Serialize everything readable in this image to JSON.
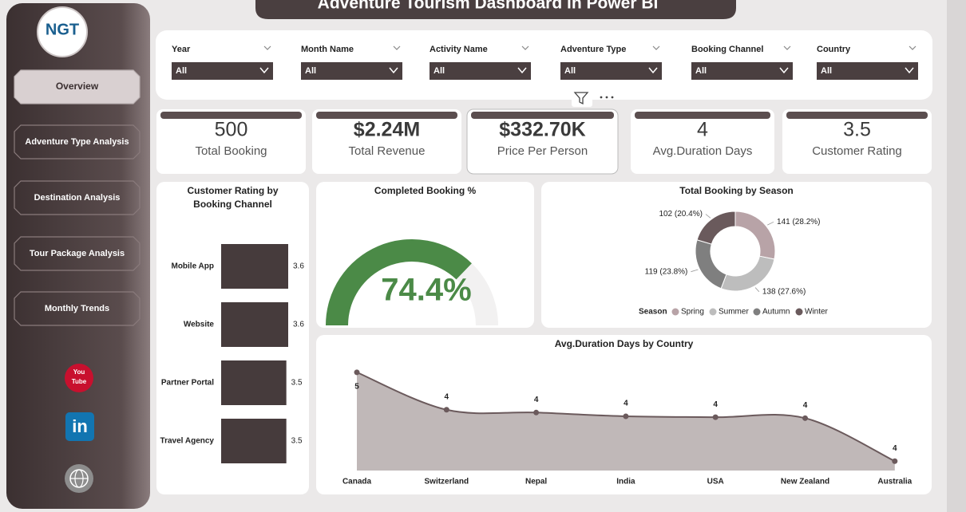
{
  "header": {
    "title": "Adventure Tourism Dashboard in Power BI"
  },
  "sidebar": {
    "logo": "NGT",
    "nav": [
      "Overview",
      "Adventure Type Analysis",
      "Destination Analysis",
      "Tour Package Analysis",
      "Monthly Trends"
    ],
    "icons": {
      "youtube": [
        "You",
        "Tube"
      ],
      "linkedin": "in"
    }
  },
  "filters": [
    {
      "label": "Year",
      "value": "All"
    },
    {
      "label": "Month Name",
      "value": "All"
    },
    {
      "label": "Activity Name",
      "value": "All"
    },
    {
      "label": "Adventure Type",
      "value": "All"
    },
    {
      "label": "Booking Channel",
      "value": "All"
    },
    {
      "label": "Country",
      "value": "All"
    }
  ],
  "kpis": [
    {
      "value": "500",
      "label": "Total Booking"
    },
    {
      "value": "$2.24M",
      "label": "Total Revenue"
    },
    {
      "value": "$332.70K",
      "label": "Price Per Person"
    },
    {
      "value": "4",
      "label": "Avg.Duration Days"
    },
    {
      "value": "3.5",
      "label": "Customer Rating"
    }
  ],
  "chart_data": [
    {
      "type": "bar",
      "title": "Customer Rating by Booking Channel",
      "categories": [
        "Mobile App",
        "Website",
        "Partner Portal",
        "Travel Agency"
      ],
      "values": [
        3.6,
        3.6,
        3.5,
        3.5
      ],
      "color": "#463b3c",
      "xlim": [
        0,
        3.6
      ]
    },
    {
      "type": "gauge",
      "title": "Completed Booking %",
      "values": [
        74.4
      ],
      "value_labels": [
        "74.4%"
      ],
      "ylim": [
        0,
        100
      ],
      "color": "#4b8a47"
    },
    {
      "type": "donut",
      "title": "Total Booking by Season",
      "legend_title": "Season",
      "categories": [
        "Spring",
        "Summer",
        "Autumn",
        "Winter"
      ],
      "values": [
        141,
        138,
        119,
        102
      ],
      "value_labels": [
        "141 (28.2%)",
        "138 (27.6%)",
        "119 (23.8%)",
        "102 (20.4%)"
      ],
      "colors": [
        "#b8a3a7",
        "#bdbdbd",
        "#7f7f7f",
        "#6a5a5c"
      ]
    },
    {
      "type": "area",
      "title": "Avg.Duration Days by Country",
      "categories": [
        "Canada",
        "Switzerland",
        "Nepal",
        "India",
        "USA",
        "New Zealand",
        "Australia"
      ],
      "values": [
        4.55,
        4.15,
        4.12,
        4.08,
        4.07,
        4.06,
        3.6
      ],
      "value_labels": [
        "5",
        "4",
        "4",
        "4",
        "4",
        "4",
        "4"
      ],
      "ylim": [
        3.5,
        4.6
      ],
      "color": "#b5abac",
      "line_color": "#6b5a5c"
    }
  ]
}
